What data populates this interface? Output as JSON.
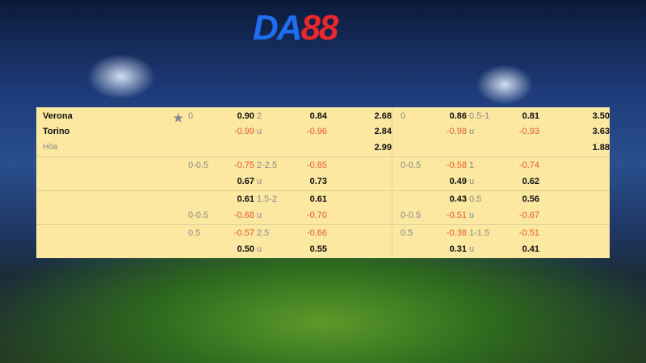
{
  "logo": {
    "part1": "DA",
    "part2": "88"
  },
  "star_icon": "star-icon",
  "colors": {
    "row_bg": "#fce8a0",
    "negative": "#e85a2a",
    "label": "#888888"
  },
  "matches": [
    {
      "lines": [
        [
          "Verona",
          "0",
          "0.90",
          "2",
          "0.84",
          "2.68",
          "0",
          "0.86",
          "0.5-1",
          "0.81",
          "3.50"
        ],
        [
          "Torino",
          "",
          "-0.99",
          "u",
          "-0.96",
          "2.84",
          "",
          "-0.98",
          "u",
          "-0.93",
          "3.63"
        ],
        [
          "Hòa",
          "",
          "",
          "",
          "",
          "2.99",
          "",
          "",
          "",
          "",
          "1.88"
        ]
      ]
    },
    {
      "lines": [
        [
          "",
          "0-0.5",
          "-0.75",
          "2-2.5",
          "-0.85",
          "",
          "0-0.5",
          "-0.58",
          "1",
          "-0.74",
          ""
        ],
        [
          "",
          "",
          "0.67",
          "u",
          "0.73",
          "",
          "",
          "0.49",
          "u",
          "0.62",
          ""
        ]
      ]
    },
    {
      "lines": [
        [
          "",
          "",
          "0.61",
          "1.5-2",
          "0.61",
          "",
          "",
          "0.43",
          "0.5",
          "0.56",
          ""
        ],
        [
          "",
          "0-0.5",
          "-0.68",
          "u",
          "-0.70",
          "",
          "0-0.5",
          "-0.51",
          "u",
          "-0.67",
          ""
        ]
      ]
    },
    {
      "lines": [
        [
          "",
          "0.5",
          "-0.57",
          "2.5",
          "-0.66",
          "",
          "0.5",
          "-0.38",
          "1-1.5",
          "-0.51",
          ""
        ],
        [
          "",
          "",
          "0.50",
          "u",
          "0.55",
          "",
          "",
          "0.31",
          "u",
          "0.41",
          ""
        ]
      ]
    }
  ]
}
